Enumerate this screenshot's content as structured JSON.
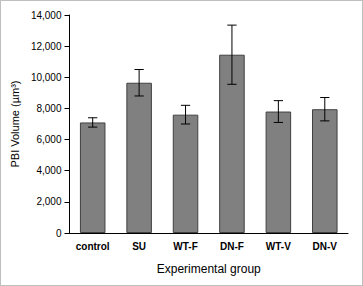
{
  "chart_data": {
    "type": "bar",
    "categories": [
      "control",
      "SU",
      "WT-F",
      "DN-F",
      "WT-V",
      "DN-V"
    ],
    "values": [
      7100,
      9650,
      7600,
      11450,
      7800,
      7950
    ],
    "errors": [
      300,
      850,
      600,
      1900,
      700,
      750
    ],
    "color": "#808080",
    "x_label": "Experimental group",
    "y_label": "PBI Volume (µm³)",
    "ylim": [
      0,
      14000
    ],
    "yticks": [
      0,
      2000,
      4000,
      6000,
      8000,
      10000,
      12000,
      14000
    ],
    "grid": false
  }
}
